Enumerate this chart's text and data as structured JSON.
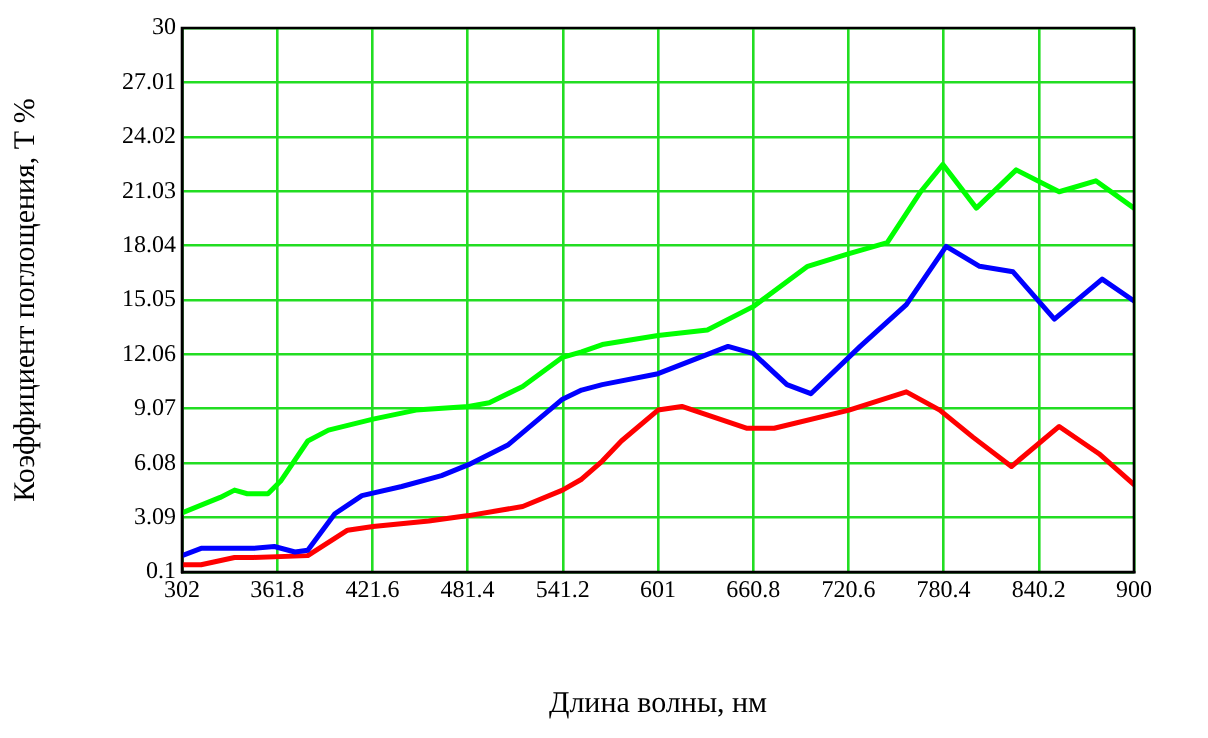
{
  "chart_data": {
    "type": "line",
    "xlabel": "Длина волны, нм",
    "ylabel": "Коэффициент поглощения, Т %",
    "xlim": [
      302,
      900
    ],
    "xticks": [
      302,
      361.8,
      421.6,
      481.4,
      541.2,
      601,
      660.8,
      720.6,
      780.4,
      840.2,
      900
    ],
    "ylim": [
      0.1,
      30
    ],
    "yticks": [
      0.1,
      3.09,
      6.08,
      9.07,
      12.06,
      15.05,
      18.04,
      21.03,
      24.02,
      27.01,
      30
    ],
    "grid": true,
    "legend": false,
    "marker": "none",
    "line_style": "solid",
    "series": [
      {
        "color": "#00ff00",
        "x": [
          302,
          326,
          335,
          343,
          356,
          364,
          381,
          394,
          422,
          449,
          482,
          495,
          516,
          541,
          553,
          566,
          601,
          632,
          661,
          695,
          721,
          745,
          766,
          780,
          801,
          826,
          853,
          876,
          900
        ],
        "values": [
          3.35,
          4.2,
          4.6,
          4.4,
          4.4,
          5.1,
          7.3,
          7.9,
          8.5,
          9.0,
          9.2,
          9.4,
          10.3,
          11.9,
          12.2,
          12.6,
          13.1,
          13.4,
          14.7,
          16.9,
          17.6,
          18.2,
          21.0,
          22.5,
          20.1,
          22.2,
          21.0,
          21.6,
          20.1
        ]
      },
      {
        "color": "#0000ff",
        "x": [
          302,
          314,
          347,
          360,
          373,
          381,
          398,
          415,
          440,
          465,
          482,
          507,
          541,
          553,
          566,
          601,
          645,
          661,
          682,
          697,
          728,
          757,
          782,
          803,
          824,
          850,
          880,
          900
        ],
        "values": [
          1.0,
          1.4,
          1.4,
          1.5,
          1.2,
          1.3,
          3.3,
          4.3,
          4.8,
          5.4,
          6.0,
          7.1,
          9.6,
          10.1,
          10.4,
          11.0,
          12.5,
          12.1,
          10.4,
          9.9,
          12.5,
          14.8,
          18.0,
          16.9,
          16.6,
          14.0,
          16.2,
          15.0
        ]
      },
      {
        "color": "#ff0000",
        "x": [
          302,
          314,
          335,
          347,
          381,
          406,
          422,
          457,
          482,
          516,
          541,
          553,
          566,
          578,
          601,
          616,
          657,
          674,
          721,
          757,
          778,
          799,
          823,
          853,
          878,
          900
        ],
        "values": [
          0.5,
          0.5,
          0.9,
          0.9,
          1.0,
          2.4,
          2.6,
          2.9,
          3.2,
          3.7,
          4.6,
          5.2,
          6.2,
          7.3,
          9.0,
          9.2,
          8.0,
          8.0,
          9.0,
          10.0,
          9.0,
          7.5,
          5.9,
          8.1,
          6.6,
          4.9
        ]
      }
    ]
  }
}
